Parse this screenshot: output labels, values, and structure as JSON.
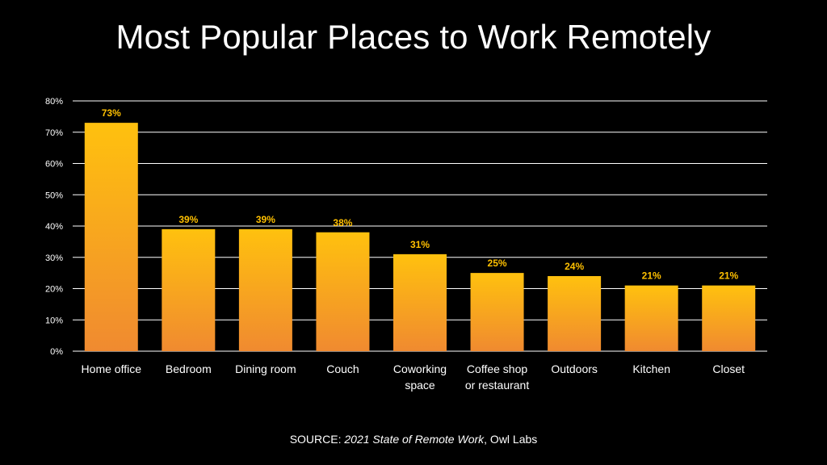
{
  "slide": {
    "title": "Most Popular Places to Work Remotely"
  },
  "source": {
    "prefix": "SOURCE:",
    "publication": "2021 State of Remote Work",
    "publisher": ", Owl Labs"
  },
  "colors": {
    "background": "#000000",
    "gridline": "#ffffff",
    "bar_top": "#ffc10e",
    "bar_bottom": "#f08a30",
    "data_label": "#ffc000",
    "text": "#ffffff"
  },
  "chart_data": {
    "type": "bar",
    "title": "Most Popular Places to Work Remotely",
    "categories": [
      [
        "Home office"
      ],
      [
        "Bedroom"
      ],
      [
        "Dining room"
      ],
      [
        "Couch"
      ],
      [
        "Coworking",
        "space"
      ],
      [
        "Coffee shop",
        "or restaurant"
      ],
      [
        "Outdoors"
      ],
      [
        "Kitchen"
      ],
      [
        "Closet"
      ]
    ],
    "values": [
      73,
      39,
      39,
      38,
      31,
      25,
      24,
      21,
      21
    ],
    "data_labels": [
      "73%",
      "39%",
      "39%",
      "38%",
      "31%",
      "25%",
      "24%",
      "21%",
      "21%"
    ],
    "ylim": [
      0,
      80
    ],
    "yticks": [
      0,
      10,
      20,
      30,
      40,
      50,
      60,
      70,
      80
    ],
    "ytick_labels": [
      "0%",
      "10%",
      "20%",
      "30%",
      "40%",
      "50%",
      "60%",
      "70%",
      "80%"
    ],
    "grid": true,
    "legend": "none",
    "xlabel": "",
    "ylabel": ""
  }
}
